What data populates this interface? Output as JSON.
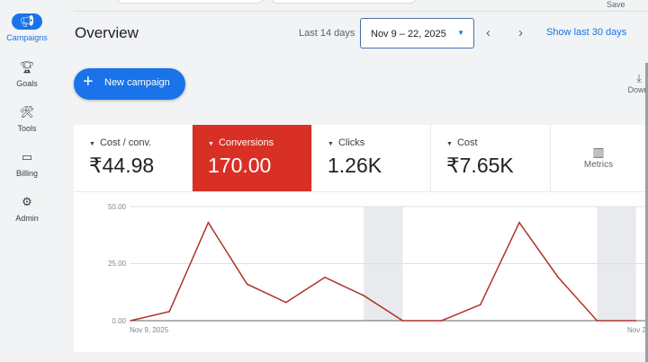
{
  "sidebar": {
    "items": [
      {
        "label": "Campaigns",
        "icon": "megaphone-icon",
        "active": true
      },
      {
        "label": "Goals",
        "icon": "trophy-icon"
      },
      {
        "label": "Tools",
        "icon": "tools-icon"
      },
      {
        "label": "Billing",
        "icon": "credit-card-icon"
      },
      {
        "label": "Admin",
        "icon": "gear-icon"
      }
    ]
  },
  "header": {
    "save": "Save",
    "title": "Overview",
    "range_label": "Last 14 days",
    "date_range": "Nov 9 – 22, 2025",
    "show_last": "Show last 30 days"
  },
  "actions": {
    "new_campaign": "New campaign",
    "download": "Downl"
  },
  "metrics": [
    {
      "label": "Cost / conv.",
      "value": "₹44.98"
    },
    {
      "label": "Conversions",
      "value": "170.00",
      "selected": true,
      "color": "#d93025"
    },
    {
      "label": "Clicks",
      "value": "1.26K"
    },
    {
      "label": "Cost",
      "value": "₹7.65K"
    }
  ],
  "metrics_button": "Metrics",
  "chart_data": {
    "type": "line",
    "series": [
      {
        "name": "Conversions",
        "color": "#b3312c",
        "values": [
          0,
          4,
          43,
          16,
          8,
          19,
          11,
          0,
          0,
          7,
          43,
          19,
          0,
          0
        ]
      }
    ],
    "ylim": [
      0,
      50
    ],
    "yticks": [
      "0.00",
      "25.00",
      "50.00"
    ],
    "xlabels": {
      "start": "Nov 9, 2025",
      "end": "Nov 2"
    },
    "shaded_days": [
      7,
      13
    ]
  }
}
